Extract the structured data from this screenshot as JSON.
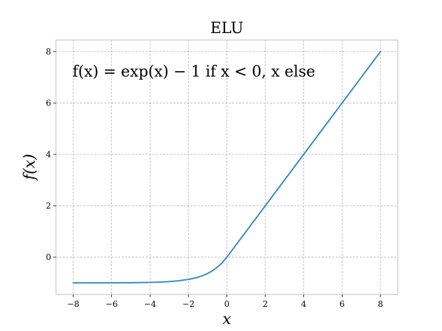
{
  "chart_data": {
    "type": "line",
    "title": "ELU",
    "xlabel": "x",
    "ylabel": "f(x)",
    "annotation": "f(x) = exp(x) − 1 if x < 0, x else",
    "xlim": [
      -8.9,
      8.9
    ],
    "ylim": [
      -1.45,
      8.45
    ],
    "xticks": [
      -8,
      -6,
      -4,
      -2,
      0,
      2,
      4,
      6,
      8
    ],
    "xtick_labels": [
      "−8",
      "−6",
      "−4",
      "−2",
      "0",
      "2",
      "4",
      "6",
      "8"
    ],
    "yticks": [
      0,
      2,
      4,
      6,
      8
    ],
    "ytick_labels": [
      "0",
      "2",
      "4",
      "6",
      "8"
    ],
    "grid": true,
    "legend": "none",
    "series": [
      {
        "color": "#348abd",
        "x": [
          -8,
          -7,
          -6,
          -5,
          -4,
          -3.5,
          -3,
          -2.5,
          -2,
          -1.75,
          -1.5,
          -1.25,
          -1,
          -0.75,
          -0.5,
          -0.25,
          0,
          1,
          2,
          3,
          4,
          5,
          6,
          7,
          8
        ],
        "y": [
          -0.9997,
          -0.9991,
          -0.9975,
          -0.9933,
          -0.9817,
          -0.9698,
          -0.9502,
          -0.9179,
          -0.8647,
          -0.8262,
          -0.7769,
          -0.7135,
          -0.6321,
          -0.5276,
          -0.3935,
          -0.2212,
          0,
          1,
          2,
          3,
          4,
          5,
          6,
          7,
          8
        ]
      }
    ]
  }
}
